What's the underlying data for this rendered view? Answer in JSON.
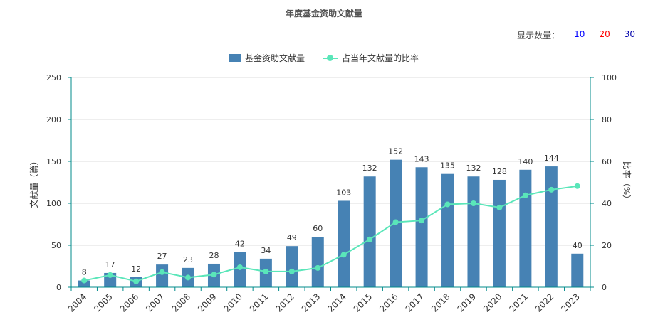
{
  "header": {
    "title": "年度基金资助文献量",
    "count_label": "显示数量：",
    "count_options": [
      {
        "label": "10",
        "color": "#0000ff"
      },
      {
        "label": "20",
        "color": "#ff0000"
      },
      {
        "label": "30",
        "color": "#0000aa"
      }
    ]
  },
  "colors": {
    "bar": "#4682b4",
    "line": "#5ae6b9",
    "axis": "#008b8b",
    "grid": "#dddddd"
  },
  "chart_data": {
    "type": "bar",
    "title": "年度基金资助文献量",
    "categories": [
      "2004",
      "2005",
      "2006",
      "2007",
      "2008",
      "2009",
      "2010",
      "2011",
      "2012",
      "2013",
      "2014",
      "2015",
      "2016",
      "2017",
      "2018",
      "2019",
      "2020",
      "2021",
      "2022",
      "2023"
    ],
    "series": [
      {
        "name": "基金资助文献量",
        "type": "bar",
        "axis": "left",
        "values": [
          8,
          17,
          12,
          27,
          23,
          28,
          42,
          34,
          49,
          60,
          103,
          132,
          152,
          143,
          135,
          132,
          128,
          140,
          144,
          40
        ]
      },
      {
        "name": "占当年文献量的比率",
        "type": "line",
        "axis": "right",
        "values": [
          3.2,
          5.8,
          2.8,
          7.2,
          4.6,
          6.0,
          9.5,
          7.5,
          7.5,
          9.2,
          15.5,
          22.8,
          31.0,
          31.8,
          39.5,
          40.0,
          38.0,
          43.8,
          46.5,
          48.2
        ]
      }
    ],
    "y_left": {
      "label": "文献量（篇）",
      "min": 0,
      "max": 250,
      "ticks": [
        0,
        50,
        100,
        150,
        200,
        250
      ]
    },
    "y_right": {
      "label": "比率（%）",
      "min": 0,
      "max": 100,
      "ticks": [
        0,
        20,
        40,
        60,
        80,
        100
      ]
    },
    "grid": true,
    "legend_position": "top-center"
  }
}
